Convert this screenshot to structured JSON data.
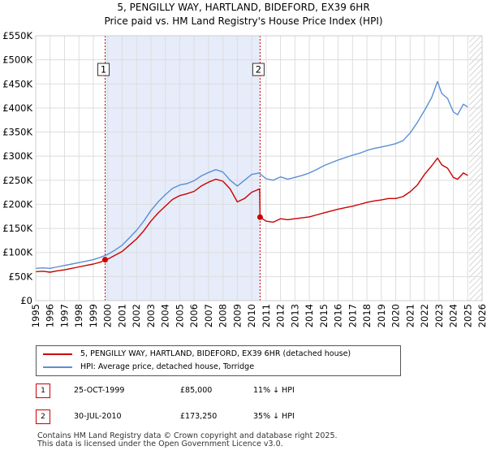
{
  "title_line1": "5, PENGILLY WAY, HARTLAND, BIDEFORD, EX39 6HR",
  "title_line2": "Price paid vs. HM Land Registry's House Price Index (HPI)",
  "colors": {
    "property": "#cc0000",
    "hpi": "#5b8fd4",
    "shade": "#e6ecfa",
    "grid": "#dddddd"
  },
  "chart_data": {
    "type": "line",
    "xlim": [
      1995,
      2026
    ],
    "ylim": [
      0,
      550000
    ],
    "x_ticks": [
      "1995",
      "1996",
      "1997",
      "1998",
      "1999",
      "2000",
      "2001",
      "2002",
      "2003",
      "2004",
      "2005",
      "2006",
      "2007",
      "2008",
      "2009",
      "2010",
      "2011",
      "2012",
      "2013",
      "2014",
      "2015",
      "2016",
      "2017",
      "2018",
      "2019",
      "2020",
      "2021",
      "2022",
      "2023",
      "2024",
      "2025",
      "2026"
    ],
    "y_ticks": [
      {
        "value": 0,
        "label": "£0"
      },
      {
        "value": 50000,
        "label": "£50K"
      },
      {
        "value": 100000,
        "label": "£100K"
      },
      {
        "value": 150000,
        "label": "£150K"
      },
      {
        "value": 200000,
        "label": "£200K"
      },
      {
        "value": 250000,
        "label": "£250K"
      },
      {
        "value": 300000,
        "label": "£300K"
      },
      {
        "value": 350000,
        "label": "£350K"
      },
      {
        "value": 400000,
        "label": "£400K"
      },
      {
        "value": 450000,
        "label": "£450K"
      },
      {
        "value": 500000,
        "label": "£500K"
      },
      {
        "value": 550000,
        "label": "£550K"
      }
    ],
    "shaded_period": [
      1999.82,
      2010.58
    ],
    "hatched_after": 2025.1,
    "series": [
      {
        "name": "5, PENGILLY WAY, HARTLAND, BIDEFORD, EX39 6HR (detached house)",
        "color": "#cc0000",
        "points": [
          [
            1995.0,
            60000
          ],
          [
            1995.5,
            61000
          ],
          [
            1996.0,
            59000
          ],
          [
            1996.5,
            62000
          ],
          [
            1997.0,
            64000
          ],
          [
            1997.5,
            67000
          ],
          [
            1998.0,
            70000
          ],
          [
            1998.5,
            73000
          ],
          [
            1999.0,
            76000
          ],
          [
            1999.5,
            80000
          ],
          [
            1999.82,
            85000
          ],
          [
            2000.0,
            86000
          ],
          [
            2000.5,
            94000
          ],
          [
            2001.0,
            102000
          ],
          [
            2001.5,
            115000
          ],
          [
            2002.0,
            128000
          ],
          [
            2002.5,
            145000
          ],
          [
            2003.0,
            165000
          ],
          [
            2003.5,
            182000
          ],
          [
            2004.0,
            196000
          ],
          [
            2004.5,
            210000
          ],
          [
            2005.0,
            218000
          ],
          [
            2005.5,
            222000
          ],
          [
            2006.0,
            227000
          ],
          [
            2006.5,
            238000
          ],
          [
            2007.0,
            246000
          ],
          [
            2007.5,
            252000
          ],
          [
            2008.0,
            248000
          ],
          [
            2008.5,
            232000
          ],
          [
            2009.0,
            205000
          ],
          [
            2009.5,
            212000
          ],
          [
            2010.0,
            225000
          ],
          [
            2010.55,
            232000
          ],
          [
            2010.58,
            173250
          ],
          [
            2011.0,
            165000
          ],
          [
            2011.5,
            163000
          ],
          [
            2012.0,
            170000
          ],
          [
            2012.5,
            168000
          ],
          [
            2013.0,
            170000
          ],
          [
            2013.5,
            172000
          ],
          [
            2014.0,
            174000
          ],
          [
            2014.5,
            178000
          ],
          [
            2015.0,
            182000
          ],
          [
            2015.5,
            186000
          ],
          [
            2016.0,
            190000
          ],
          [
            2016.5,
            193000
          ],
          [
            2017.0,
            196000
          ],
          [
            2017.5,
            200000
          ],
          [
            2018.0,
            204000
          ],
          [
            2018.5,
            207000
          ],
          [
            2019.0,
            209000
          ],
          [
            2019.5,
            212000
          ],
          [
            2020.0,
            212000
          ],
          [
            2020.5,
            216000
          ],
          [
            2021.0,
            226000
          ],
          [
            2021.5,
            240000
          ],
          [
            2022.0,
            262000
          ],
          [
            2022.5,
            280000
          ],
          [
            2022.9,
            296000
          ],
          [
            2023.2,
            282000
          ],
          [
            2023.6,
            275000
          ],
          [
            2024.0,
            256000
          ],
          [
            2024.3,
            252000
          ],
          [
            2024.7,
            265000
          ],
          [
            2025.0,
            260000
          ]
        ]
      },
      {
        "name": "HPI: Average price, detached house, Torridge",
        "color": "#5b8fd4",
        "points": [
          [
            1995.0,
            67000
          ],
          [
            1995.5,
            68000
          ],
          [
            1996.0,
            67000
          ],
          [
            1996.5,
            70000
          ],
          [
            1997.0,
            73000
          ],
          [
            1997.5,
            76000
          ],
          [
            1998.0,
            79000
          ],
          [
            1998.5,
            82000
          ],
          [
            1999.0,
            85000
          ],
          [
            1999.5,
            90000
          ],
          [
            2000.0,
            96000
          ],
          [
            2000.5,
            105000
          ],
          [
            2001.0,
            115000
          ],
          [
            2001.5,
            130000
          ],
          [
            2002.0,
            146000
          ],
          [
            2002.5,
            165000
          ],
          [
            2003.0,
            187000
          ],
          [
            2003.5,
            205000
          ],
          [
            2004.0,
            220000
          ],
          [
            2004.5,
            233000
          ],
          [
            2005.0,
            240000
          ],
          [
            2005.5,
            243000
          ],
          [
            2006.0,
            249000
          ],
          [
            2006.5,
            259000
          ],
          [
            2007.0,
            266000
          ],
          [
            2007.5,
            272000
          ],
          [
            2008.0,
            267000
          ],
          [
            2008.5,
            250000
          ],
          [
            2009.0,
            238000
          ],
          [
            2009.5,
            250000
          ],
          [
            2010.0,
            262000
          ],
          [
            2010.5,
            265000
          ],
          [
            2011.0,
            253000
          ],
          [
            2011.5,
            250000
          ],
          [
            2012.0,
            257000
          ],
          [
            2012.5,
            252000
          ],
          [
            2013.0,
            256000
          ],
          [
            2013.5,
            260000
          ],
          [
            2014.0,
            265000
          ],
          [
            2014.5,
            272000
          ],
          [
            2015.0,
            280000
          ],
          [
            2015.5,
            286000
          ],
          [
            2016.0,
            292000
          ],
          [
            2016.5,
            297000
          ],
          [
            2017.0,
            302000
          ],
          [
            2017.5,
            306000
          ],
          [
            2018.0,
            312000
          ],
          [
            2018.5,
            316000
          ],
          [
            2019.0,
            319000
          ],
          [
            2019.5,
            322000
          ],
          [
            2020.0,
            326000
          ],
          [
            2020.5,
            332000
          ],
          [
            2021.0,
            348000
          ],
          [
            2021.5,
            370000
          ],
          [
            2022.0,
            395000
          ],
          [
            2022.5,
            422000
          ],
          [
            2022.9,
            455000
          ],
          [
            2023.2,
            430000
          ],
          [
            2023.6,
            420000
          ],
          [
            2024.0,
            392000
          ],
          [
            2024.3,
            386000
          ],
          [
            2024.7,
            408000
          ],
          [
            2025.0,
            402000
          ]
        ]
      }
    ],
    "sales": [
      {
        "num": "1",
        "date": "25-OCT-1999",
        "year": 1999.82,
        "price_value": 85000,
        "price": "£85,000",
        "hpi": "11% ↓ HPI"
      },
      {
        "num": "2",
        "date": "30-JUL-2010",
        "year": 2010.58,
        "price_value": 173250,
        "price": "£173,250",
        "hpi": "35% ↓ HPI"
      }
    ]
  },
  "legend": {
    "property_label": "5, PENGILLY WAY, HARTLAND, BIDEFORD, EX39 6HR (detached house)",
    "hpi_label": "HPI: Average price, detached house, Torridge"
  },
  "footer": {
    "line1": "Contains HM Land Registry data © Crown copyright and database right 2025.",
    "line2": "This data is licensed under the Open Government Licence v3.0."
  }
}
